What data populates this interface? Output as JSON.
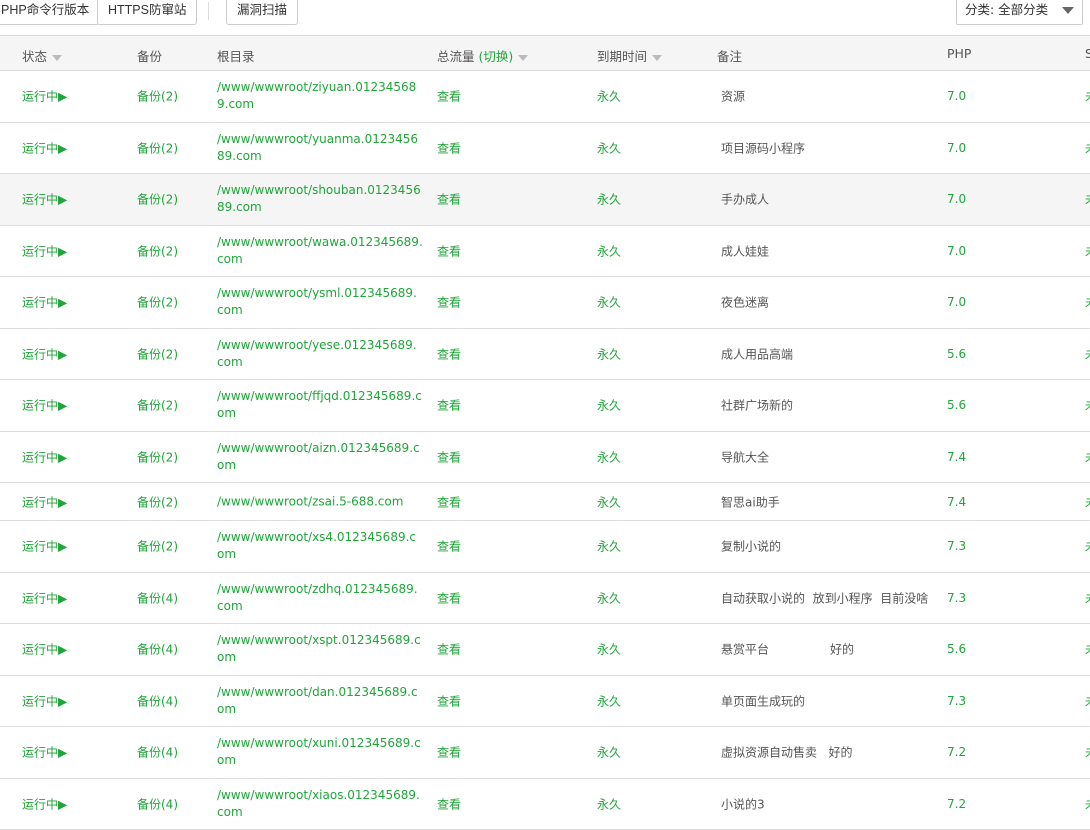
{
  "toolbar": {
    "php_cli": "PHP命令行版本",
    "https_anti": "HTTPS防窜站",
    "vuln_scan": "漏洞扫描",
    "category_select": "分类: 全部分类"
  },
  "table": {
    "headers": {
      "status": "状态",
      "backup": "备份",
      "root": "根目录",
      "traffic": "总流量",
      "traffic_switch": "(切换)",
      "expiry": "到期时间",
      "remark": "备注",
      "php": "PHP",
      "ssl": "SSL"
    },
    "rows": [
      {
        "status": "运行中▶",
        "backup": "备份(2)",
        "root": "/www/wwwroot/ziyuan.012345689.com",
        "traffic": "查看",
        "expiry": "永久",
        "remark": "资源",
        "php": "7.0",
        "ssl": "未部署"
      },
      {
        "status": "运行中▶",
        "backup": "备份(2)",
        "root": "/www/wwwroot/yuanma.012345689.com",
        "traffic": "查看",
        "expiry": "永久",
        "remark": "项目源码小程序",
        "php": "7.0",
        "ssl": "未部署"
      },
      {
        "status": "运行中▶",
        "backup": "备份(2)",
        "root": "/www/wwwroot/shouban.012345689.com",
        "traffic": "查看",
        "expiry": "永久",
        "remark": "手办成人",
        "php": "7.0",
        "ssl": "未部署"
      },
      {
        "status": "运行中▶",
        "backup": "备份(2)",
        "root": "/www/wwwroot/wawa.012345689.com",
        "traffic": "查看",
        "expiry": "永久",
        "remark": "成人娃娃",
        "php": "7.0",
        "ssl": "未部署"
      },
      {
        "status": "运行中▶",
        "backup": "备份(2)",
        "root": "/www/wwwroot/ysml.012345689.com",
        "traffic": "查看",
        "expiry": "永久",
        "remark": "夜色迷离",
        "php": "7.0",
        "ssl": "未部署"
      },
      {
        "status": "运行中▶",
        "backup": "备份(2)",
        "root": "/www/wwwroot/yese.012345689.com",
        "traffic": "查看",
        "expiry": "永久",
        "remark": "成人用品高端",
        "php": "5.6",
        "ssl": "未部署"
      },
      {
        "status": "运行中▶",
        "backup": "备份(2)",
        "root": "/www/wwwroot/ffjqd.012345689.com",
        "traffic": "查看",
        "expiry": "永久",
        "remark": "社群广场新的",
        "php": "5.6",
        "ssl": "未部署"
      },
      {
        "status": "运行中▶",
        "backup": "备份(2)",
        "root": "/www/wwwroot/aizn.012345689.com",
        "traffic": "查看",
        "expiry": "永久",
        "remark": "导航大全",
        "php": "7.4",
        "ssl": "未部署"
      },
      {
        "status": "运行中▶",
        "backup": "备份(2)",
        "root": "/www/wwwroot/zsai.5-688.com",
        "traffic": "查看",
        "expiry": "永久",
        "remark": "智思ai助手",
        "php": "7.4",
        "ssl": "未部署"
      },
      {
        "status": "运行中▶",
        "backup": "备份(2)",
        "root": "/www/wwwroot/xs4.012345689.com",
        "traffic": "查看",
        "expiry": "永久",
        "remark": "复制小说的",
        "php": "7.3",
        "ssl": "未部署"
      },
      {
        "status": "运行中▶",
        "backup": "备份(4)",
        "root": "/www/wwwroot/zdhq.012345689.com",
        "traffic": "查看",
        "expiry": "永久",
        "remark": "自动获取小说的  放到小程序  目前没啥",
        "php": "7.3",
        "ssl": "未部署"
      },
      {
        "status": "运行中▶",
        "backup": "备份(4)",
        "root": "/www/wwwroot/xspt.012345689.com",
        "traffic": "查看",
        "expiry": "永久",
        "remark": "悬赏平台                好的",
        "php": "5.6",
        "ssl": "未部署"
      },
      {
        "status": "运行中▶",
        "backup": "备份(4)",
        "root": "/www/wwwroot/dan.012345689.com",
        "traffic": "查看",
        "expiry": "永久",
        "remark": "单页面生成玩的",
        "php": "7.3",
        "ssl": "未部署"
      },
      {
        "status": "运行中▶",
        "backup": "备份(4)",
        "root": "/www/wwwroot/xuni.012345689.com",
        "traffic": "查看",
        "expiry": "永久",
        "remark": "虚拟资源自动售卖   好的",
        "php": "7.2",
        "ssl": "未部署"
      },
      {
        "status": "运行中▶",
        "backup": "备份(4)",
        "root": "/www/wwwroot/xiaos.012345689.com",
        "traffic": "查看",
        "expiry": "永久",
        "remark": "小说的3",
        "php": "7.2",
        "ssl": "未部署"
      }
    ]
  },
  "colors": {
    "accent": "#20a53a",
    "header_bg": "#f5f5f5",
    "border": "#dddddd"
  }
}
